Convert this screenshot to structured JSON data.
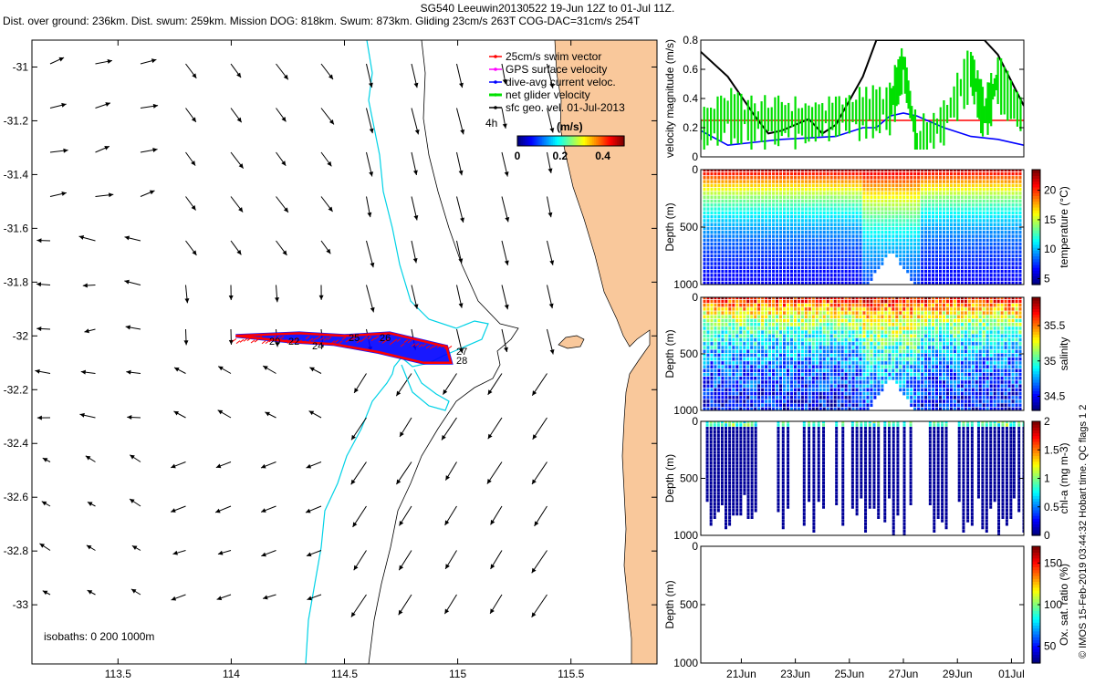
{
  "header": {
    "line1": "SG540 Leeuwin20130522 19-Jun 12Z to 01-Jul 11Z.",
    "line2": "Dist. over ground: 236km. Dist. swum: 259km. Mission DOG: 818km. Swum: 873km. Gliding 23cm/s 263T COG-DAC=31cm/s 254T"
  },
  "credit": "© IMOS 15-Feb-2019 03:44:32 Hobart time. QC flags 1  2",
  "colors": {
    "land": "#f9c89b",
    "isobath_200": "#00d2e6",
    "swim_vector": "#ff0000",
    "gps_velocity": "#ff00ff",
    "dive_current": "#0000ff",
    "net_velocity": "#00e000",
    "sfc_geo": "#000000"
  },
  "map": {
    "isobath_note": "isobaths: 0   200  1000m",
    "legend": {
      "items": [
        {
          "label": "25cm/s swim vector",
          "color": "#ff0000"
        },
        {
          "label": "GPS surface velocity",
          "color": "#ff00ff"
        },
        {
          "label": "dive-avg current veloc.",
          "color": "#0000ff"
        },
        {
          "label": "net glider velocity",
          "color": "#00e000"
        },
        {
          "label": "sfc geo. vel. 01-Jul-2013",
          "color": "#000000"
        }
      ],
      "time_marker": "4h"
    },
    "colorbar": {
      "label": "(m/s)",
      "ticks": [
        {
          "v": 0,
          "t": "0"
        },
        {
          "v": 0.2,
          "t": "0.2"
        },
        {
          "v": 0.4,
          "t": "0.4"
        }
      ],
      "range": [
        0,
        0.5
      ]
    },
    "track_labels": [
      "20",
      "22",
      "24",
      "25",
      "26",
      "27",
      "28"
    ]
  },
  "chart_data": [
    {
      "type": "scatter",
      "title": "",
      "xlabel": "",
      "ylabel": "",
      "xlim": [
        113.12,
        115.88
      ],
      "ylim": [
        -33.22,
        -30.9
      ],
      "x_ticks": [
        {
          "v": 113.5,
          "t": "113.5"
        },
        {
          "v": 114,
          "t": "114"
        },
        {
          "v": 114.5,
          "t": "114.5"
        },
        {
          "v": 115,
          "t": "115"
        },
        {
          "v": 115.5,
          "t": "115.5"
        }
      ],
      "y_ticks": [
        {
          "v": -31,
          "t": "-31"
        },
        {
          "v": -31.2,
          "t": "-31.2"
        },
        {
          "v": -31.4,
          "t": "-31.4"
        },
        {
          "v": -31.6,
          "t": "-31.6"
        },
        {
          "v": -31.8,
          "t": "-31.8"
        },
        {
          "v": -32,
          "t": "-32"
        },
        {
          "v": -32.2,
          "t": "-32.2"
        },
        {
          "v": -32.4,
          "t": "-32.4"
        },
        {
          "v": -32.6,
          "t": "-32.6"
        },
        {
          "v": -32.8,
          "t": "-32.8"
        },
        {
          "v": -33,
          "t": "-33"
        }
      ],
      "grid": false,
      "glider_track": {
        "lon": [
          114.02,
          114.3,
          114.5,
          114.7,
          114.85,
          114.95,
          114.97,
          114.85,
          114.65,
          114.45,
          114.25,
          114.02
        ],
        "lat": [
          -32.0,
          -31.99,
          -32.0,
          -31.99,
          -32.02,
          -32.04,
          -32.1,
          -32.1,
          -32.06,
          -32.03,
          -32.02,
          -32.0
        ]
      }
    },
    {
      "type": "line",
      "title": "",
      "ylabel": "velocity magnitude (m/s)",
      "ylim": [
        0,
        0.8
      ],
      "x_date_range": [
        "2013-06-19 12:00",
        "2013-07-01 11:00"
      ],
      "y_ticks": [
        {
          "v": 0,
          "t": "0"
        },
        {
          "v": 0.2,
          "t": "0.2"
        },
        {
          "v": 0.4,
          "t": "0.4"
        },
        {
          "v": 0.6,
          "t": "0.6"
        },
        {
          "v": 0.8,
          "t": "0.8"
        }
      ],
      "series": [
        {
          "color": "#ff0000",
          "x": [
            "2013-06-19 12:00",
            "2013-07-01 11:00"
          ],
          "values": [
            0.25,
            0.25
          ]
        },
        {
          "color": "#0000ff",
          "x": [
            "2013-06-19 12:00",
            "2013-06-20 12:00",
            "2013-06-21 12:00",
            "2013-06-22 12:00",
            "2013-06-23 12:00",
            "2013-06-24 12:00",
            "2013-06-25 12:00",
            "2013-06-26 00:00",
            "2013-06-26 12:00",
            "2013-06-27 00:00",
            "2013-06-27 12:00",
            "2013-06-28 12:00",
            "2013-06-29 12:00",
            "2013-06-30 12:00",
            "2013-07-01 11:00"
          ],
          "values": [
            0.18,
            0.08,
            0.1,
            0.12,
            0.13,
            0.14,
            0.2,
            0.2,
            0.28,
            0.3,
            0.28,
            0.2,
            0.14,
            0.12,
            0.08
          ]
        },
        {
          "color": "#000000",
          "x": [
            "2013-06-19 12:00",
            "2013-06-20 12:00",
            "2013-06-21 12:00",
            "2013-06-22 00:00",
            "2013-06-22 12:00",
            "2013-06-23 12:00",
            "2013-06-24 00:00",
            "2013-06-24 12:00",
            "2013-06-25 12:00",
            "2013-06-26 00:00",
            "2013-06-30 00:00",
            "2013-06-30 12:00",
            "2013-07-01 11:00"
          ],
          "values": [
            0.72,
            0.55,
            0.28,
            0.16,
            0.18,
            0.26,
            0.16,
            0.22,
            0.55,
            0.8,
            0.8,
            0.7,
            0.35
          ]
        },
        {
          "color": "#00e000",
          "x": [
            "2013-06-19 12:00",
            "2013-06-20 12:00",
            "2013-06-21 12:00",
            "2013-06-22 12:00",
            "2013-06-23 12:00",
            "2013-06-24 12:00",
            "2013-06-25 12:00",
            "2013-06-26 12:00",
            "2013-06-27 00:00",
            "2013-06-27 12:00",
            "2013-06-28 12:00",
            "2013-06-29 12:00",
            "2013-06-30 00:00",
            "2013-06-30 12:00",
            "2013-07-01 11:00"
          ],
          "values": [
            0.2,
            0.32,
            0.26,
            0.28,
            0.25,
            0.3,
            0.33,
            0.36,
            0.65,
            0.1,
            0.26,
            0.62,
            0.3,
            0.55,
            0.28
          ]
        }
      ]
    },
    {
      "type": "heatmap",
      "title": "",
      "ylabel": "Depth (m)",
      "ylim": [
        0,
        1000
      ],
      "y_ticks": [
        {
          "v": 0,
          "t": "0"
        },
        {
          "v": 500,
          "t": "500"
        },
        {
          "v": 1000,
          "t": "1000"
        }
      ],
      "colorbar": {
        "label": "temperature (°C)",
        "range": [
          4,
          23.5
        ],
        "ticks": [
          {
            "v": 5,
            "t": "5"
          },
          {
            "v": 10,
            "t": "10"
          },
          {
            "v": 15,
            "t": "15"
          },
          {
            "v": 20,
            "t": "20"
          }
        ]
      },
      "surface_value": 22,
      "bottom_value": 5
    },
    {
      "type": "heatmap",
      "title": "",
      "ylabel": "Depth (m)",
      "ylim": [
        0,
        1000
      ],
      "y_ticks": [
        {
          "v": 0,
          "t": "0"
        },
        {
          "v": 500,
          "t": "500"
        },
        {
          "v": 1000,
          "t": "1000"
        }
      ],
      "colorbar": {
        "label": "salinity",
        "range": [
          34.3,
          35.9
        ],
        "ticks": [
          {
            "v": 34.5,
            "t": "34.5"
          },
          {
            "v": 35,
            "t": "35"
          },
          {
            "v": 35.5,
            "t": "35.5"
          }
        ]
      },
      "surface_value": 35.7,
      "bottom_value": 34.4
    },
    {
      "type": "heatmap",
      "title": "",
      "ylabel": "Depth (m)",
      "ylim": [
        0,
        1000
      ],
      "y_ticks": [
        {
          "v": 0,
          "t": "0"
        },
        {
          "v": 500,
          "t": "500"
        },
        {
          "v": 1000,
          "t": "1000"
        }
      ],
      "colorbar": {
        "label": "chl-a (mg m-3)",
        "range": [
          0,
          2
        ],
        "ticks": [
          {
            "v": 0,
            "t": "0"
          },
          {
            "v": 0.5,
            "t": "0.5"
          },
          {
            "v": 1,
            "t": "1"
          },
          {
            "v": 1.5,
            "t": "1.5"
          },
          {
            "v": 2,
            "t": "2"
          }
        ]
      },
      "surface_value": 0.6,
      "bottom_value": 0.05
    },
    {
      "type": "heatmap",
      "title": "",
      "ylabel": "Depth (m)",
      "ylim": [
        0,
        1000
      ],
      "y_ticks": [
        {
          "v": 0,
          "t": "0"
        },
        {
          "v": 500,
          "t": "500"
        },
        {
          "v": 1000,
          "t": "1000"
        }
      ],
      "x_ticks": [
        {
          "v": "2013-06-21",
          "t": "21Jun"
        },
        {
          "v": "2013-06-23",
          "t": "23Jun"
        },
        {
          "v": "2013-06-25",
          "t": "25Jun"
        },
        {
          "v": "2013-06-27",
          "t": "27Jun"
        },
        {
          "v": "2013-06-29",
          "t": "29Jun"
        },
        {
          "v": "2013-07-01",
          "t": "01Jul"
        }
      ],
      "colorbar": {
        "label": "Ox. sat. ratio (%)",
        "range": [
          30,
          170
        ],
        "ticks": [
          {
            "v": 50,
            "t": "50"
          },
          {
            "v": 100,
            "t": "100"
          },
          {
            "v": 150,
            "t": "150"
          }
        ]
      }
    }
  ]
}
